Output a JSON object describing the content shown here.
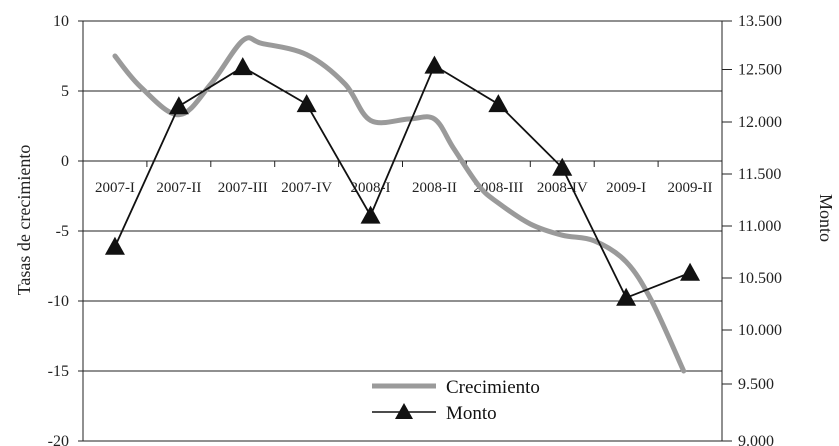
{
  "chart_data": {
    "type": "line",
    "categories": [
      "2007-I",
      "2007-II",
      "2007-III",
      "2007-IV",
      "2008-I",
      "2008-II",
      "2008-III",
      "2008-IV",
      "2009-I",
      "2009-II"
    ],
    "ylabel": "Tasas de crecimiento",
    "y2label": "Monto",
    "ylim": [
      -20,
      10
    ],
    "y2lim": [
      9000,
      13500
    ],
    "yticks": [
      "10",
      "5",
      "0",
      "-5",
      "-10",
      "-15",
      "-20"
    ],
    "y2ticks": [
      "13.500",
      "12.500",
      "12.000",
      "11.500",
      "11.000",
      "10.500",
      "10.000",
      "9.500",
      "9.000"
    ],
    "grid": "horizontal",
    "legend_position": "bottom-center",
    "series": [
      {
        "name": "Crecimiento",
        "axis": "left",
        "color": "#9a9a9a",
        "smooth": true,
        "x": [
          0,
          0.4,
          1,
          1.5,
          2.0,
          2.3,
          3.0,
          3.6,
          4.0,
          4.6,
          5.0,
          5.3,
          5.7,
          6.0,
          6.5,
          7.0,
          7.5,
          8.0,
          8.4,
          8.9
        ],
        "values": [
          7.5,
          5.3,
          3.3,
          5.5,
          8.6,
          8.4,
          7.6,
          5.5,
          2.9,
          3.0,
          3.0,
          0.9,
          -1.8,
          -3.0,
          -4.5,
          -5.3,
          -5.7,
          -7.2,
          -10.0,
          -15.0
        ]
      },
      {
        "name": "Monto",
        "axis": "right",
        "color": "#111111",
        "marker": "triangle",
        "values": [
          10800,
          12150,
          12550,
          12170,
          11100,
          12580,
          12170,
          11560,
          10310,
          10550
        ]
      }
    ]
  }
}
